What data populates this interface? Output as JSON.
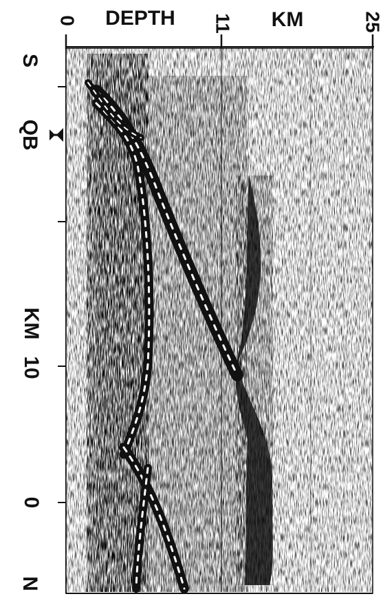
{
  "top_axis": {
    "title_left": "DEPTH",
    "title_right": "KM",
    "ticks": [
      "0",
      "11",
      "25"
    ]
  },
  "left_axis": {
    "ticks": [
      "0",
      "10"
    ],
    "unit_label": "KM",
    "upper_end_label": "S",
    "lower_end_label": "N",
    "marker_label": "QB"
  },
  "colors": {
    "ink": "#111111",
    "paper": "#ffffff",
    "dash": "#ffffff"
  }
}
